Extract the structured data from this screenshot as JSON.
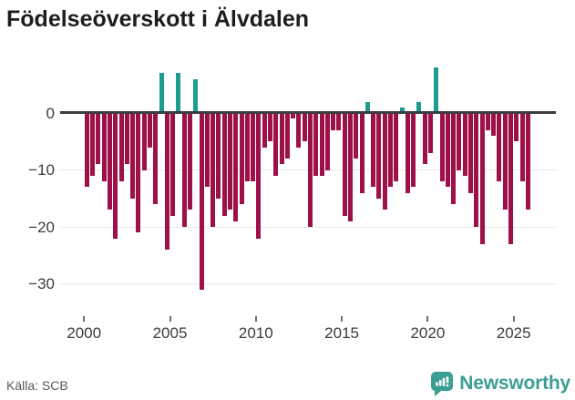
{
  "header": {
    "title": "Födelseöverskott i Älvdalen"
  },
  "footer": {
    "source": "Källa: SCB",
    "brand": "Newsworthy"
  },
  "colors": {
    "negative_bar": "#9e1048",
    "positive_bar": "#1d9c92",
    "zero_axis": "#3d3d3d",
    "gridline": "#e9e9e9",
    "brand_teal": "#3b9e93"
  },
  "chart_data": {
    "type": "bar",
    "title": "Födelseöverskott i Älvdalen",
    "source": "Källa: SCB",
    "xlabel": "",
    "ylabel": "",
    "start_year": 2000,
    "bars_per_year": 3,
    "x_range_years": [
      2000,
      2026
    ],
    "ylim": [
      -33,
      9
    ],
    "yticks": [
      0,
      -10,
      -20,
      -30
    ],
    "ytick_labels": [
      "0",
      "−10",
      "−20",
      "−30"
    ],
    "xtick_labels": [
      "2000",
      "2005",
      "2010",
      "2015",
      "2020",
      "2025"
    ],
    "legend_position": "none",
    "grid": "horizontal",
    "values": [
      -13,
      -11,
      -9,
      -12,
      -17,
      -22,
      -12,
      -9,
      -15,
      -21,
      -10,
      -6,
      -16,
      7,
      -24,
      -18,
      7,
      -20,
      -17,
      6,
      -31,
      -13,
      -20,
      -15,
      -18,
      -17,
      -19,
      -16,
      -12,
      -12,
      -22,
      -6,
      -5,
      -11,
      -9,
      -8,
      -1,
      -6,
      -5,
      -20,
      -11,
      -11,
      -10,
      -3,
      -3,
      -18,
      -19,
      -8,
      -14,
      2,
      -13,
      -15,
      -17,
      -13,
      -12,
      1,
      -14,
      -13,
      2,
      -9,
      -7,
      8,
      -12,
      -13,
      -16,
      -10,
      -11,
      -14,
      -20,
      -23,
      -3,
      -4,
      -12,
      -17,
      -23,
      -5,
      -12,
      -17
    ]
  }
}
